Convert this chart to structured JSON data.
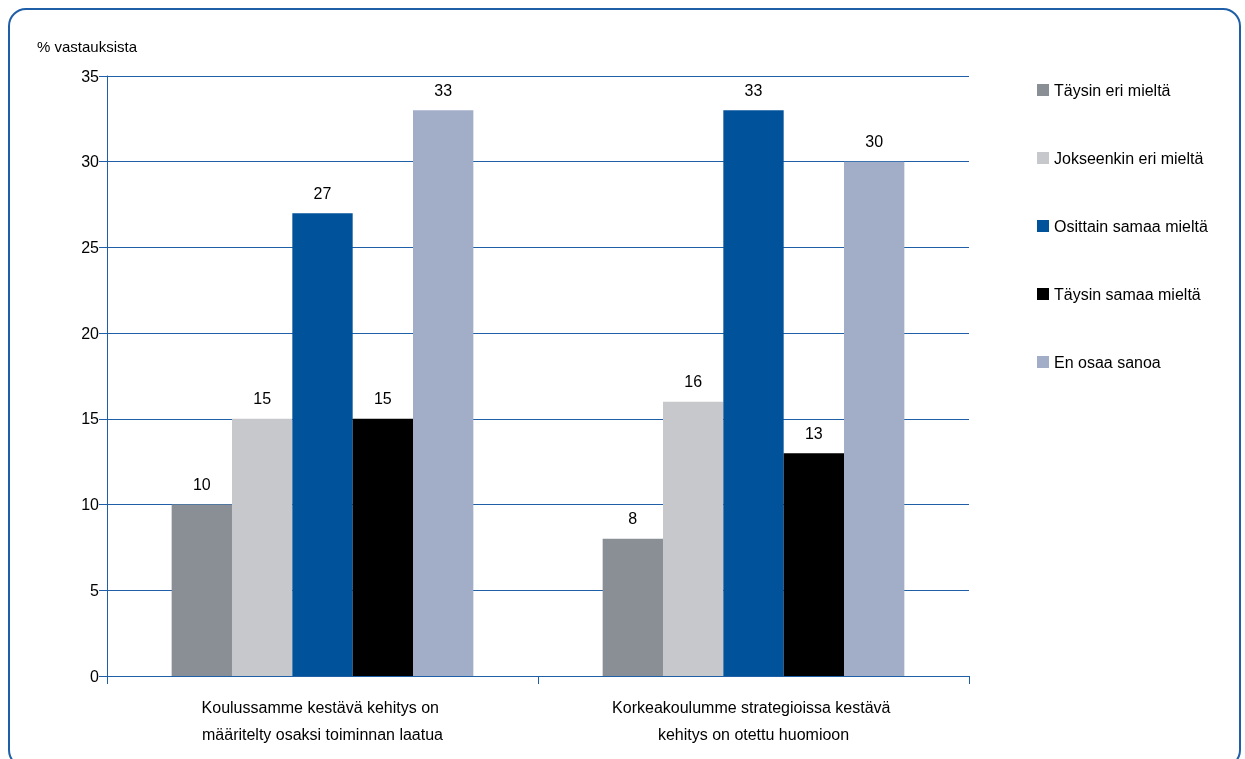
{
  "chart_data": {
    "type": "bar",
    "ylabel": "% vastauksista",
    "categories": [
      "Koulussamme kestävä kehitys on määritelty osaksi toiminnan laatua",
      "Korkeakoulumme strategioissa kestävä kehitys on otettu huomioon"
    ],
    "series": [
      {
        "name": "Täysin eri mieltä",
        "color": "#8a8f96",
        "values": [
          10,
          8
        ]
      },
      {
        "name": "Jokseenkin eri mieltä",
        "color": "#c6c8cc",
        "values": [
          15,
          16
        ]
      },
      {
        "name": "Osittain samaa mieltä",
        "color": "#00529b",
        "values": [
          27,
          33
        ]
      },
      {
        "name": "Täysin samaa mieltä",
        "color": "#000000",
        "values": [
          15,
          13
        ]
      },
      {
        "name": "En osaa sanoa",
        "color": "#a2aec8",
        "values": [
          33,
          30
        ]
      }
    ],
    "ylim": [
      0,
      35
    ],
    "yticks": [
      0,
      5,
      10,
      15,
      20,
      25,
      30,
      35
    ],
    "grid": "y",
    "legend": "right",
    "data_labels": true
  }
}
